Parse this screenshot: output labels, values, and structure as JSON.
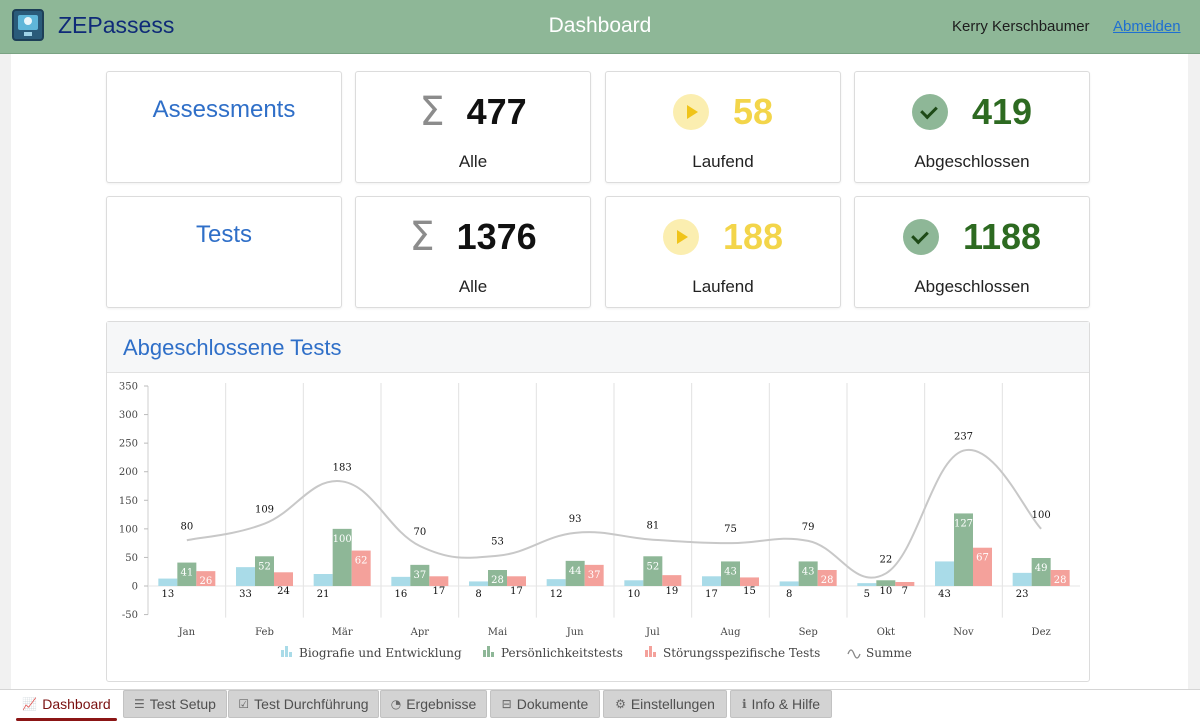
{
  "header": {
    "app_name": "ZEPassess",
    "title": "Dashboard",
    "user": "Kerry Kerschbaumer",
    "logout_label": "Abmelden",
    "icons": {
      "logo": "monitor-lightbulb-logo"
    },
    "colors": {
      "bar": "#8eb797",
      "app_name": "#0f2a78"
    }
  },
  "stats": {
    "assessments": {
      "title": "Assessments",
      "all": {
        "value": "477",
        "label": "Alle",
        "icon": "sigma-icon"
      },
      "running": {
        "value": "58",
        "label": "Laufend",
        "icon": "play-icon"
      },
      "done": {
        "value": "419",
        "label": "Abgeschlossen",
        "icon": "check-icon"
      }
    },
    "tests": {
      "title": "Tests",
      "all": {
        "value": "1376",
        "label": "Alle",
        "icon": "sigma-icon"
      },
      "running": {
        "value": "188",
        "label": "Laufend",
        "icon": "play-icon"
      },
      "done": {
        "value": "1188",
        "label": "Abgeschlossen",
        "icon": "check-icon"
      }
    },
    "colors": {
      "all": "#111111",
      "running": "#f3d54a",
      "done": "#2d6a21"
    }
  },
  "chart": {
    "heading": "Abgeschlossene Tests"
  },
  "chart_data": {
    "type": "bar",
    "title": "Abgeschlossene Tests",
    "categories": [
      "Jan",
      "Feb",
      "Mär",
      "Apr",
      "Mai",
      "Jun",
      "Jul",
      "Aug",
      "Sep",
      "Okt",
      "Nov",
      "Dez"
    ],
    "series": [
      {
        "name": "Biografie und Entwicklung",
        "type": "bar",
        "color": "#a9dbe8",
        "label_color": "#111111",
        "values": [
          13,
          33,
          21,
          16,
          8,
          12,
          10,
          17,
          8,
          5,
          43,
          23
        ]
      },
      {
        "name": "Persönlichkeitstests",
        "type": "bar",
        "color": "#8eb797",
        "label_color": "#ffffff",
        "values": [
          41,
          52,
          100,
          37,
          28,
          44,
          52,
          43,
          43,
          10,
          127,
          49
        ]
      },
      {
        "name": "Störungsspezifische Tests",
        "type": "bar",
        "color": "#f4a19b",
        "label_color": "#ffffff",
        "values": [
          26,
          24,
          62,
          17,
          17,
          37,
          19,
          15,
          28,
          7,
          67,
          28
        ]
      },
      {
        "name": "Summe",
        "type": "line",
        "color": "#c8c8c8",
        "values": [
          80,
          109,
          183,
          70,
          53,
          93,
          81,
          75,
          79,
          22,
          237,
          100
        ]
      }
    ],
    "yticks": [
      -50,
      0,
      50,
      100,
      150,
      200,
      250,
      300,
      350
    ],
    "ylim": [
      -50,
      350
    ],
    "grid": "vertical",
    "legend_position": "bottom"
  },
  "tabs": [
    {
      "label": "Dashboard",
      "icon": "chart-line-icon",
      "active": true
    },
    {
      "label": "Test Setup",
      "icon": "sliders-icon",
      "active": false
    },
    {
      "label": "Test Durchführung",
      "icon": "checklist-icon",
      "active": false
    },
    {
      "label": "Ergebnisse",
      "icon": "gauge-icon",
      "active": false
    },
    {
      "label": "Dokumente",
      "icon": "sitemap-icon",
      "active": false
    },
    {
      "label": "Einstellungen",
      "icon": "gears-icon",
      "active": false
    },
    {
      "label": "Info & Hilfe",
      "icon": "info-icon",
      "active": false
    }
  ]
}
